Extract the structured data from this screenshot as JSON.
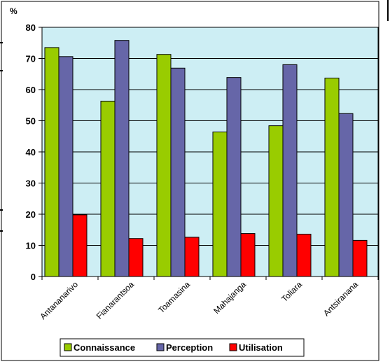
{
  "chart_data": {
    "type": "bar",
    "ylabel": "%",
    "ylim": [
      0,
      80
    ],
    "yticks": [
      0,
      10,
      20,
      30,
      40,
      50,
      60,
      70,
      80
    ],
    "categories": [
      "Antananarivo",
      "Fianarantsoa",
      "Toamasina",
      "Mahajanga",
      "Toliara",
      "Antsiranana"
    ],
    "series": [
      {
        "name": "Connaissance",
        "values": [
          73.5,
          56.3,
          71.3,
          46.4,
          48.4,
          63.7
        ]
      },
      {
        "name": "Perception",
        "values": [
          70.6,
          75.8,
          66.9,
          63.9,
          68.0,
          52.3
        ]
      },
      {
        "name": "Utilisation",
        "values": [
          19.8,
          12.2,
          12.6,
          13.8,
          13.6,
          11.6
        ]
      }
    ],
    "grid": true,
    "legend": "bottom"
  },
  "colors": {
    "plot_background": "#cdeef4",
    "series": [
      "#99cc00",
      "#6666a8",
      "#ff0000"
    ],
    "bar_outline": "#000000",
    "gridline": "#000000"
  }
}
